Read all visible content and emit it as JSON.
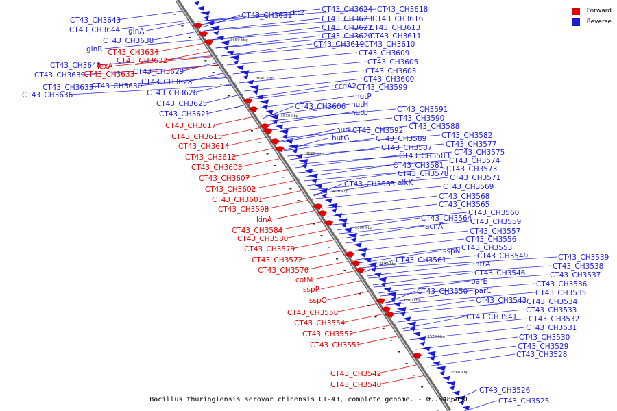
{
  "caption": "Bacillus thuringiensis serovar chinensis CT-43, complete genome. - 0..5486830",
  "legend": [
    {
      "label": "Forward",
      "color": "#e00000"
    },
    {
      "label": "Reverse",
      "color": "#1a1ad8"
    }
  ],
  "ticks": [
    "3650 kbp",
    "3640 kbp",
    "3630 kbp",
    "3620 kbp",
    "3610 kbp",
    "3600 kbp",
    "3590 kbp",
    "3580 kbp",
    "3570 kbp",
    "3560 kbp"
  ],
  "reverse_labels": [
    "CT43_CH3643",
    "CT43_CH3644",
    "glnA",
    "CT43_CH3638",
    "glnR",
    "CT43_CH3631",
    "tkt2",
    "CT43_CH3624",
    "CT43_CH3618",
    "CT43_CH3623",
    "CT43_CH3616",
    "CT43_CH3622",
    "CT43_CH3613",
    "CT43_CH3620",
    "CT43_CH3611",
    "CT43_CH3619",
    "CT43_CH3610",
    "CT43_CH3609",
    "CT43_CH3605",
    "CT43_CH3603",
    "CT43_CH3600",
    "ccdA2",
    "CT43_CH3599",
    "CT43_CH3629",
    "CT43_CH3628",
    "CT43_CH3626",
    "CT43_CH3639",
    "CT43_CH3640",
    "CT43_CH3635",
    "CT43_CH3630",
    "CT43_CH3636",
    "CT43_CH3625",
    "CT43_CH3621",
    "hutP",
    "CT43_CH3606",
    "hutH",
    "hutU",
    "hutI",
    "CT43_CH3592",
    "hutG",
    "CT43_CH3591",
    "CT43_CH3590",
    "CT43_CH3588",
    "CT43_CH3589",
    "CT43_CH3582",
    "CT43_CH3587",
    "CT43_CH3577",
    "CT43_CH3583",
    "CT43_CH3575",
    "CT43_CH3574",
    "CT43_CH3581",
    "CT43_CH3573",
    "CT43_CH3578",
    "CT43_CH3585",
    "alkK",
    "CT43_CH3571",
    "CT43_CH3569",
    "CT43_CH3568",
    "CT43_CH3565",
    "CT43_CH3560",
    "CT43_CH3564",
    "CT43_CH3559",
    "acnA",
    "CT43_CH3557",
    "CT43_CH3556",
    "CT43_CH3553",
    "sspN",
    "CT43_CH3549",
    "CT43_CH3561",
    "htrA",
    "CT43_CH3546",
    "parE",
    "CT43_CH3550",
    "parC",
    "CT43_CH3543",
    "CT43_CH3541",
    "CT43_CH3539",
    "CT43_CH3538",
    "CT43_CH3537",
    "CT43_CH3536",
    "CT43_CH3535",
    "CT43_CH3534",
    "CT43_CH3533",
    "CT43_CH3532",
    "CT43_CH3531",
    "CT43_CH3530",
    "CT43_CH3529",
    "CT43_CH3528",
    "CT43_CH3526",
    "CT43_CH3525"
  ],
  "forward_labels": [
    "CT43_CH3634",
    "CT43_CH3632",
    "lexA",
    "CT43_CH3633",
    "CT43_CH3617",
    "CT43_CH3615",
    "CT43_CH3614",
    "CT43_CH3612",
    "CT43_CH3608",
    "CT43_CH3607",
    "CT43_CH3602",
    "CT43_CH3601",
    "CT43_CH3598",
    "kinA",
    "CT43_CH3584",
    "CT43_CH3580",
    "CT43_CH3579",
    "CT43_CH3572",
    "CT43_CH3570",
    "cotM",
    "sspP",
    "sspO",
    "CT43_CH3558",
    "CT43_CH3554",
    "CT43_CH3552",
    "CT43_CH3551",
    "CT43_CH3542",
    "CT43_CH3540"
  ]
}
